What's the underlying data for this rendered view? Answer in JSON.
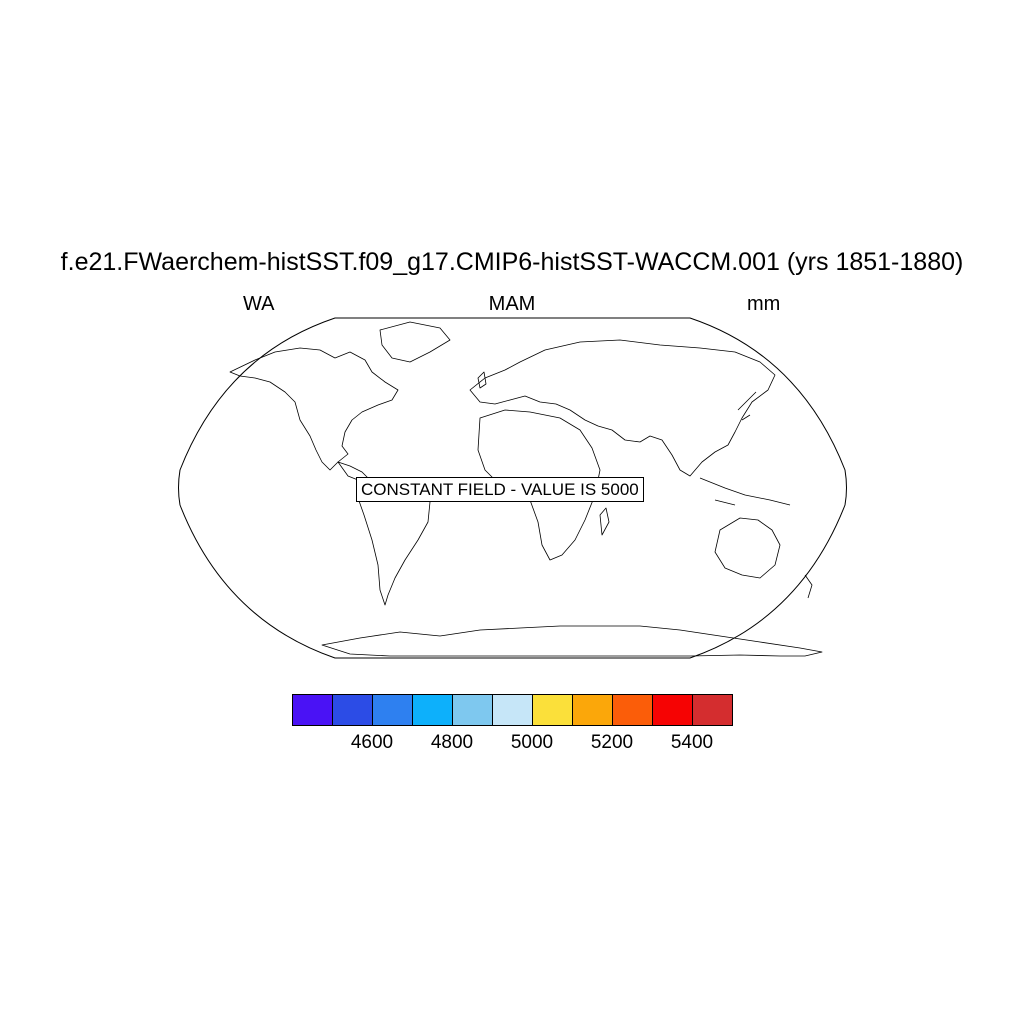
{
  "plot": {
    "title": "f.e21.FWaerchem-histSST.f09_g17.CMIP6-histSST-WACCM.001 (yrs 1851-1880)",
    "left_label": "WA",
    "center_label": "MAM",
    "right_label": "mm"
  },
  "map": {
    "projection": "robinson",
    "annotation": "CONSTANT FIELD - VALUE IS 5000"
  },
  "colorbar": {
    "colors": [
      "#4a12f5",
      "#2c4ce6",
      "#2e80f0",
      "#0db0fb",
      "#7ec8ef",
      "#c6e6f8",
      "#fbe03a",
      "#fba70a",
      "#fb5d09",
      "#f60303",
      "#d42d2f"
    ],
    "tick_labels": [
      "4600",
      "4800",
      "5000",
      "5200",
      "5400"
    ]
  }
}
